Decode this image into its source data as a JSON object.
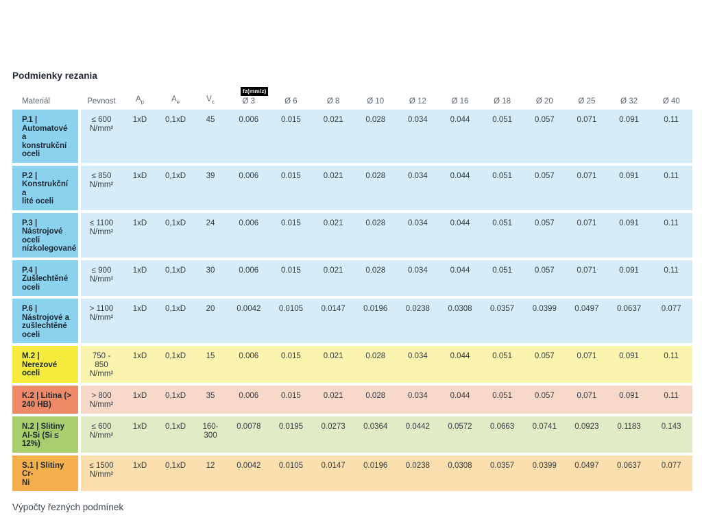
{
  "title": "Podmienky rezania",
  "footer": "Výpočty řezných podmínek",
  "colors": {
    "steel_label": "#8bd2ee",
    "steel_body": "#d6edf8",
    "stainless_label": "#f5eb3d",
    "stainless_body": "#faf4ae",
    "castiron_label": "#ee8a67",
    "castiron_body": "#f7d8c9",
    "aluminium_label": "#a9ce6d",
    "aluminium_body": "#dfecc5",
    "superalloy_label": "#f5b04e",
    "superalloy_body": "#fbdfae",
    "badge_bg": "#000000",
    "badge_text": "#ffffff"
  },
  "table": {
    "headers": {
      "material": "Materiál",
      "pevnost": "Pevnost",
      "ap_main": "A",
      "ap_sub": "p",
      "ae_main": "A",
      "ae_sub": "e",
      "vc_main": "V",
      "vc_sub": "c",
      "fz_badge": "fz(mm/z)",
      "diameters": [
        "Ø 3",
        "Ø 6",
        "Ø 8",
        "Ø 10",
        "Ø 12",
        "Ø 16",
        "Ø 18",
        "Ø 20",
        "Ø 25",
        "Ø 32",
        "Ø 40"
      ]
    },
    "rows": [
      {
        "material": "P.1 |\nAutomatové a\nkonstrukční\noceli",
        "pevnost": "≤ 600\nN/mm²",
        "ap": "1xD",
        "ae": "0,1xD",
        "vc": "45",
        "fz": [
          "0.006",
          "0.015",
          "0.021",
          "0.028",
          "0.034",
          "0.044",
          "0.051",
          "0.057",
          "0.071",
          "0.091",
          "0.11"
        ],
        "colors": {
          "label": "#8bd2ee",
          "body": "#d6edf8"
        }
      },
      {
        "material": "P.2 |\nKonstrukční a\nlité oceli",
        "pevnost": "≤ 850\nN/mm²",
        "ap": "1xD",
        "ae": "0,1xD",
        "vc": "39",
        "fz": [
          "0.006",
          "0.015",
          "0.021",
          "0.028",
          "0.034",
          "0.044",
          "0.051",
          "0.057",
          "0.071",
          "0.091",
          "0.11"
        ],
        "colors": {
          "label": "#8bd2ee",
          "body": "#d6edf8"
        }
      },
      {
        "material": "P.3 |\nNástrojové\noceli\nnízkolegované",
        "pevnost": "≤ 1100\nN/mm²",
        "ap": "1xD",
        "ae": "0,1xD",
        "vc": "24",
        "fz": [
          "0.006",
          "0.015",
          "0.021",
          "0.028",
          "0.034",
          "0.044",
          "0.051",
          "0.057",
          "0.071",
          "0.091",
          "0.11"
        ],
        "colors": {
          "label": "#8bd2ee",
          "body": "#d6edf8"
        }
      },
      {
        "material": "P.4 |\nZušlechtěné\noceli",
        "pevnost": "≤ 900\nN/mm²",
        "ap": "1xD",
        "ae": "0,1xD",
        "vc": "30",
        "fz": [
          "0.006",
          "0.015",
          "0.021",
          "0.028",
          "0.034",
          "0.044",
          "0.051",
          "0.057",
          "0.071",
          "0.091",
          "0.11"
        ],
        "colors": {
          "label": "#8bd2ee",
          "body": "#d6edf8"
        }
      },
      {
        "material": "P.6 |\nNástrojové a\nzušlechtěné\noceli",
        "pevnost": "> 1100\nN/mm²",
        "ap": "1xD",
        "ae": "0,1xD",
        "vc": "20",
        "fz": [
          "0.0042",
          "0.0105",
          "0.0147",
          "0.0196",
          "0.0238",
          "0.0308",
          "0.0357",
          "0.0399",
          "0.0497",
          "0.0637",
          "0.077"
        ],
        "colors": {
          "label": "#8bd2ee",
          "body": "#d6edf8"
        }
      },
      {
        "material": "M.2 |\nNerezové\noceli",
        "pevnost": "750 -\n850\nN/mm²",
        "ap": "1xD",
        "ae": "0,1xD",
        "vc": "15",
        "fz": [
          "0.006",
          "0.015",
          "0.021",
          "0.028",
          "0.034",
          "0.044",
          "0.051",
          "0.057",
          "0.071",
          "0.091",
          "0.11"
        ],
        "colors": {
          "label": "#f5eb3d",
          "body": "#faf4ae"
        }
      },
      {
        "material": "K.2 | Litina (>\n240 HB)",
        "pevnost": "> 800\nN/mm²",
        "ap": "1xD",
        "ae": "0,1xD",
        "vc": "35",
        "fz": [
          "0.006",
          "0.015",
          "0.021",
          "0.028",
          "0.034",
          "0.044",
          "0.051",
          "0.057",
          "0.071",
          "0.091",
          "0.11"
        ],
        "colors": {
          "label": "#ee8a67",
          "body": "#f7d8c9"
        }
      },
      {
        "material": "N.2 | Slitiny\nAl-Si (Si ≤\n12%)",
        "pevnost": "≤ 600\nN/mm²",
        "ap": "1xD",
        "ae": "0,1xD",
        "vc": "160-\n300",
        "fz": [
          "0.0078",
          "0.0195",
          "0.0273",
          "0.0364",
          "0.0442",
          "0.0572",
          "0.0663",
          "0.0741",
          "0.0923",
          "0.1183",
          "0.143"
        ],
        "colors": {
          "label": "#a9ce6d",
          "body": "#dfecc5"
        }
      },
      {
        "material": "S.1 | Slitiny Cr-\nNi",
        "pevnost": "≤ 1500\nN/mm²",
        "ap": "1xD",
        "ae": "0,1xD",
        "vc": "12",
        "fz": [
          "0.0042",
          "0.0105",
          "0.0147",
          "0.0196",
          "0.0238",
          "0.0308",
          "0.0357",
          "0.0399",
          "0.0497",
          "0.0637",
          "0.077"
        ],
        "colors": {
          "label": "#f5b04e",
          "body": "#fbdfae"
        }
      }
    ]
  }
}
